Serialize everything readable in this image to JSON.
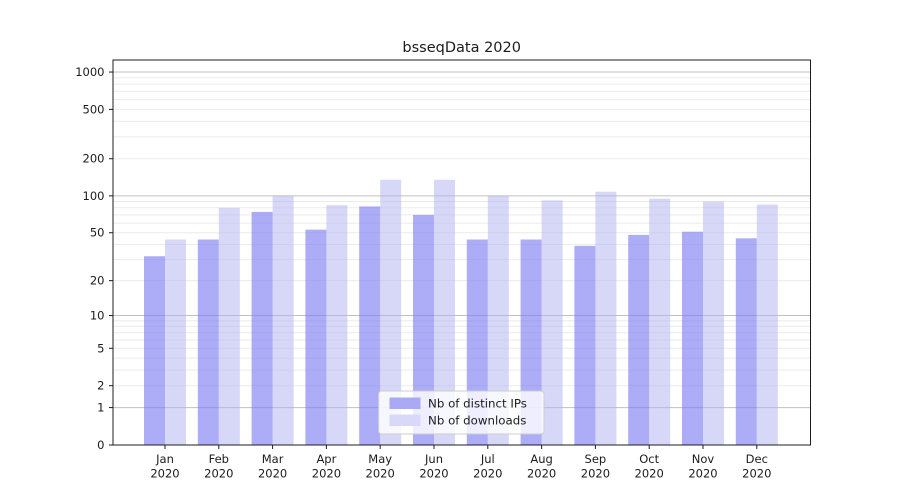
{
  "chart_data": {
    "type": "bar",
    "title": "bsseqData 2020",
    "xlabel": "",
    "ylabel": "",
    "scale": "log10(value+1)",
    "ylim": [
      0,
      1250
    ],
    "grid": "horizontal log minor+major gridlines",
    "legend_position": "lower center",
    "year": "2020",
    "categories": [
      "Jan",
      "Feb",
      "Mar",
      "Apr",
      "May",
      "Jun",
      "Jul",
      "Aug",
      "Sep",
      "Oct",
      "Nov",
      "Dec"
    ],
    "x_tick_labels_line1": [
      "Jan",
      "Feb",
      "Mar",
      "Apr",
      "May",
      "Jun",
      "Jul",
      "Aug",
      "Sep",
      "Oct",
      "Nov",
      "Dec"
    ],
    "x_tick_labels_line2": [
      "2020",
      "2020",
      "2020",
      "2020",
      "2020",
      "2020",
      "2020",
      "2020",
      "2020",
      "2020",
      "2020",
      "2020"
    ],
    "y_tick_labels": [
      "1000",
      "500",
      "200",
      "100",
      "50",
      "20",
      "10",
      "5",
      "2",
      "1",
      "0"
    ],
    "y_tick_values": [
      1000,
      500,
      200,
      100,
      50,
      20,
      10,
      5,
      2,
      1,
      0
    ],
    "major_grid_values": [
      1,
      10,
      100,
      1000
    ],
    "series": [
      {
        "name": "Nb of distinct IPs",
        "color": "#7b7bf3",
        "opacity": 0.63,
        "legend_swatch_color": "#a9a9f6",
        "values": [
          32,
          44,
          74,
          53,
          82,
          70,
          44,
          44,
          39,
          48,
          51,
          45
        ]
      },
      {
        "name": "Nb of downloads",
        "color": "#b3b3ef",
        "opacity": 0.52,
        "legend_swatch_color": "#d8d8f8",
        "values": [
          44,
          80,
          100,
          84,
          135,
          135,
          100,
          92,
          108,
          95,
          90,
          85
        ]
      }
    ],
    "colors": {
      "minor_gridline": "#ebebeb",
      "major_gridline": "#c0c0c0",
      "spine": "#1c1c1c",
      "legend_border": "#cccccc",
      "legend_background": "rgba(255,255,255,0.8)"
    }
  }
}
